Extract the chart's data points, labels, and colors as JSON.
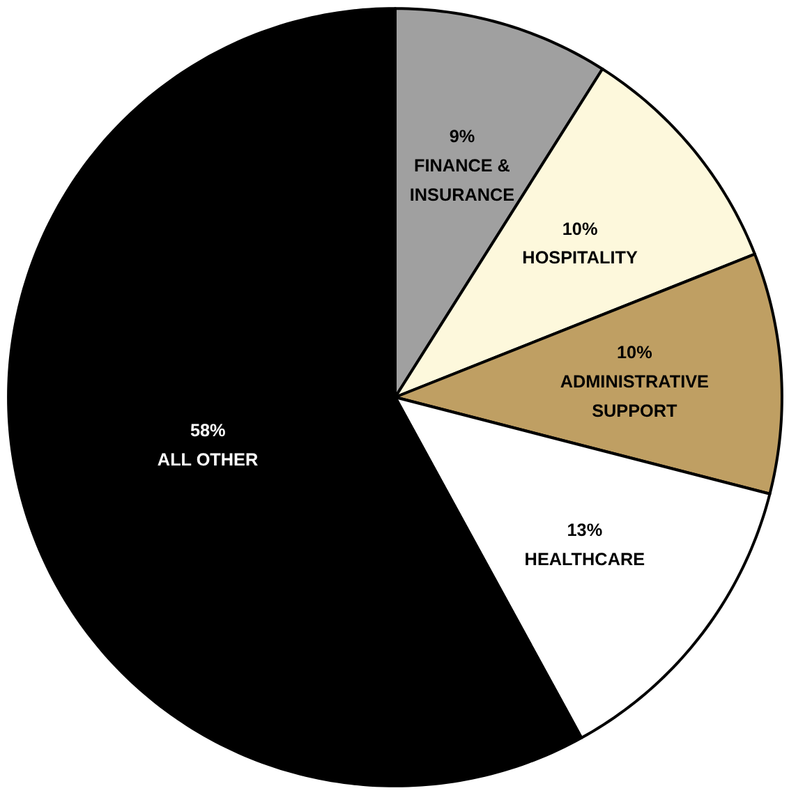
{
  "chart_data": {
    "type": "pie",
    "categories": [
      "FINANCE & INSURANCE",
      "HOSPITALITY",
      "ADMINISTRATIVE SUPPORT",
      "HEALTHCARE",
      "ALL OTHER"
    ],
    "values": [
      9,
      10,
      10,
      13,
      58
    ],
    "value_labels": [
      "9%",
      "10%",
      "10%",
      "13%",
      "58%"
    ],
    "colors": [
      "#a0a0a0",
      "#fdf8dc",
      "#bf9f63",
      "#ffffff",
      "#000000"
    ]
  }
}
